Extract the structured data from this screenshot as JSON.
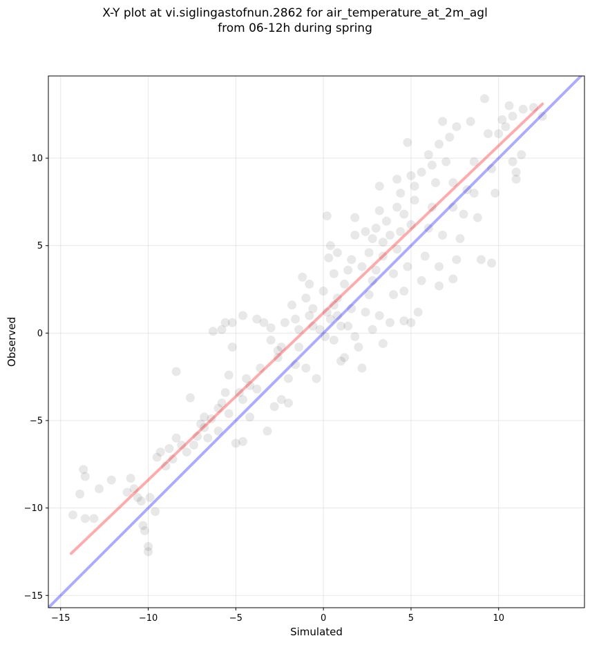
{
  "chart_data": {
    "type": "scatter",
    "title_line1": "X-Y plot at vi.siglingastofnun.2862 for air_temperature_at_2m_agl",
    "title_line2": "from 06-12h during spring",
    "xlabel": "Simulated",
    "ylabel": "Observed",
    "xlim": [
      -15.7,
      14.9
    ],
    "ylim": [
      -15.7,
      14.7
    ],
    "xticks": [
      -15,
      -10,
      -5,
      0,
      5,
      10
    ],
    "yticks": [
      -15,
      -10,
      -5,
      0,
      5,
      10
    ],
    "xtick_labels": [
      "−15",
      "−10",
      "−5",
      "0",
      "5",
      "10"
    ],
    "ytick_labels": [
      "−15",
      "−10",
      "−5",
      "0",
      "5",
      "10"
    ],
    "grid": true,
    "point_color": "#000000",
    "fit_line_color": "#ff0000",
    "identity_line_color": "#0000ff",
    "fit_line": {
      "x": [
        -14.4,
        12.5
      ],
      "y": [
        -12.6,
        13.1
      ]
    },
    "identity_line": {
      "x": [
        -15.7,
        14.9
      ],
      "y": [
        -15.7,
        14.9
      ]
    },
    "points": [
      [
        -14.3,
        -10.4
      ],
      [
        -13.9,
        -9.2
      ],
      [
        -13.7,
        -7.8
      ],
      [
        -13.6,
        -8.2
      ],
      [
        -13.6,
        -10.6
      ],
      [
        -13.1,
        -10.6
      ],
      [
        -12.8,
        -8.9
      ],
      [
        -12.1,
        -8.4
      ],
      [
        -11.2,
        -9.1
      ],
      [
        -11.0,
        -8.3
      ],
      [
        -10.8,
        -8.9
      ],
      [
        -10.6,
        -9.4
      ],
      [
        -10.4,
        -9.6
      ],
      [
        -10.3,
        -11.0
      ],
      [
        -10.2,
        -11.3
      ],
      [
        -10.0,
        -12.2
      ],
      [
        -10.0,
        -12.5
      ],
      [
        -9.9,
        -9.4
      ],
      [
        -9.6,
        -10.2
      ],
      [
        -9.5,
        -7.1
      ],
      [
        -9.3,
        -6.8
      ],
      [
        -8.8,
        -6.6
      ],
      [
        -8.4,
        -2.2
      ],
      [
        -8.1,
        -6.4
      ],
      [
        -7.6,
        -3.7
      ],
      [
        -7.2,
        -5.9
      ],
      [
        -6.8,
        -5.4
      ],
      [
        -6.4,
        -4.9
      ],
      [
        -6.0,
        -4.3
      ],
      [
        -6.3,
        0.1
      ],
      [
        -5.8,
        0.2
      ],
      [
        -5.6,
        0.6
      ],
      [
        -5.2,
        0.6
      ],
      [
        -4.6,
        1.0
      ],
      [
        -4.2,
        -4.8
      ],
      [
        -4.6,
        -6.2
      ],
      [
        -5.0,
        -6.3
      ],
      [
        -4.4,
        -2.6
      ],
      [
        -5.4,
        -2.4
      ],
      [
        -5.2,
        -0.8
      ],
      [
        -5.6,
        -3.4
      ],
      [
        -4.8,
        -3.4
      ],
      [
        -3.8,
        0.8
      ],
      [
        -3.4,
        0.6
      ],
      [
        -3.0,
        -0.4
      ],
      [
        -2.6,
        -1.4
      ],
      [
        -3.2,
        -5.6
      ],
      [
        -2.8,
        -4.2
      ],
      [
        -2.4,
        -3.8
      ],
      [
        -2.0,
        -4.0
      ],
      [
        -2.2,
        0.6
      ],
      [
        -1.6,
        0.8
      ],
      [
        -1.2,
        3.2
      ],
      [
        -0.8,
        2.8
      ],
      [
        -0.6,
        1.4
      ],
      [
        -0.4,
        -2.6
      ],
      [
        -1.0,
        -2.0
      ],
      [
        -1.4,
        -0.8
      ],
      [
        0.2,
        6.7
      ],
      [
        0.4,
        5.0
      ],
      [
        0.3,
        4.3
      ],
      [
        0.8,
        4.6
      ],
      [
        0.0,
        2.4
      ],
      [
        0.2,
        1.2
      ],
      [
        0.4,
        0.8
      ],
      [
        0.6,
        1.6
      ],
      [
        0.6,
        -0.4
      ],
      [
        1.0,
        -1.6
      ],
      [
        1.2,
        -1.4
      ],
      [
        1.0,
        0.4
      ],
      [
        0.8,
        1.0
      ],
      [
        1.2,
        2.8
      ],
      [
        1.4,
        3.6
      ],
      [
        1.6,
        4.2
      ],
      [
        1.8,
        5.6
      ],
      [
        1.8,
        6.6
      ],
      [
        1.4,
        0.4
      ],
      [
        1.8,
        -0.2
      ],
      [
        2.0,
        -0.8
      ],
      [
        2.2,
        -2.0
      ],
      [
        2.4,
        1.2
      ],
      [
        2.6,
        2.2
      ],
      [
        2.8,
        3.0
      ],
      [
        2.6,
        4.6
      ],
      [
        2.8,
        5.4
      ],
      [
        3.0,
        6.0
      ],
      [
        3.2,
        7.0
      ],
      [
        3.2,
        8.4
      ],
      [
        3.4,
        5.2
      ],
      [
        3.4,
        4.4
      ],
      [
        3.0,
        3.6
      ],
      [
        3.2,
        1.0
      ],
      [
        2.8,
        0.2
      ],
      [
        3.4,
        -0.6
      ],
      [
        3.8,
        0.6
      ],
      [
        4.0,
        2.2
      ],
      [
        4.0,
        3.4
      ],
      [
        4.2,
        4.8
      ],
      [
        4.4,
        5.8
      ],
      [
        4.6,
        6.8
      ],
      [
        4.4,
        8.0
      ],
      [
        4.2,
        8.8
      ],
      [
        4.8,
        10.9
      ],
      [
        5.0,
        9.0
      ],
      [
        5.2,
        7.6
      ],
      [
        5.0,
        6.2
      ],
      [
        4.8,
        3.8
      ],
      [
        4.6,
        2.4
      ],
      [
        4.6,
        0.7
      ],
      [
        5.0,
        0.6
      ],
      [
        5.4,
        1.2
      ],
      [
        5.6,
        3.0
      ],
      [
        5.8,
        4.4
      ],
      [
        6.0,
        6.0
      ],
      [
        6.2,
        7.2
      ],
      [
        6.4,
        8.6
      ],
      [
        6.2,
        9.6
      ],
      [
        6.6,
        10.8
      ],
      [
        6.8,
        12.1
      ],
      [
        7.2,
        11.2
      ],
      [
        7.0,
        9.8
      ],
      [
        7.4,
        8.6
      ],
      [
        7.4,
        7.2
      ],
      [
        6.8,
        5.6
      ],
      [
        6.6,
        3.8
      ],
      [
        6.6,
        2.7
      ],
      [
        7.4,
        3.1
      ],
      [
        7.6,
        4.2
      ],
      [
        7.8,
        5.4
      ],
      [
        8.0,
        6.8
      ],
      [
        8.2,
        8.2
      ],
      [
        7.6,
        11.8
      ],
      [
        8.4,
        12.1
      ],
      [
        8.6,
        9.8
      ],
      [
        8.6,
        8.0
      ],
      [
        8.8,
        6.6
      ],
      [
        9.0,
        4.2
      ],
      [
        9.2,
        13.4
      ],
      [
        9.4,
        11.4
      ],
      [
        9.6,
        9.4
      ],
      [
        9.8,
        8.0
      ],
      [
        9.6,
        4.0
      ],
      [
        10.0,
        11.4
      ],
      [
        10.2,
        12.2
      ],
      [
        10.4,
        11.8
      ],
      [
        10.6,
        13.0
      ],
      [
        10.8,
        12.4
      ],
      [
        10.8,
        9.8
      ],
      [
        11.0,
        9.2
      ],
      [
        11.0,
        8.8
      ],
      [
        11.3,
        10.2
      ],
      [
        11.4,
        12.8
      ],
      [
        12.0,
        12.9
      ],
      [
        12.5,
        12.4
      ],
      [
        -3.0,
        0.3
      ],
      [
        -1.8,
        1.6
      ],
      [
        -2.4,
        -0.8
      ],
      [
        -2.0,
        -2.6
      ],
      [
        -1.6,
        -1.8
      ],
      [
        -0.2,
        0.2
      ],
      [
        0.1,
        -0.2
      ],
      [
        -0.6,
        0.4
      ],
      [
        0.8,
        2.0
      ],
      [
        1.6,
        1.4
      ],
      [
        2.2,
        3.8
      ],
      [
        2.4,
        5.8
      ],
      [
        3.6,
        6.4
      ],
      [
        3.8,
        5.6
      ],
      [
        5.2,
        8.4
      ],
      [
        5.6,
        9.2
      ],
      [
        6.0,
        10.2
      ],
      [
        4.2,
        7.2
      ],
      [
        -6.8,
        -4.8
      ],
      [
        -6.6,
        -6.0
      ],
      [
        -7.0,
        -5.2
      ],
      [
        -6.0,
        -5.6
      ],
      [
        -5.8,
        -4.0
      ],
      [
        -5.4,
        -4.6
      ],
      [
        -4.6,
        -3.8
      ],
      [
        -4.2,
        -3.0
      ],
      [
        -3.6,
        -2.0
      ],
      [
        -3.8,
        -3.2
      ],
      [
        -7.8,
        -6.8
      ],
      [
        -8.6,
        -7.2
      ],
      [
        -9.0,
        -7.6
      ],
      [
        -8.4,
        -6.0
      ],
      [
        -7.4,
        -6.4
      ],
      [
        -2.6,
        -1.0
      ],
      [
        -1.4,
        0.2
      ],
      [
        -0.8,
        1.0
      ],
      [
        -1.0,
        2.0
      ],
      [
        0.6,
        3.4
      ]
    ]
  }
}
